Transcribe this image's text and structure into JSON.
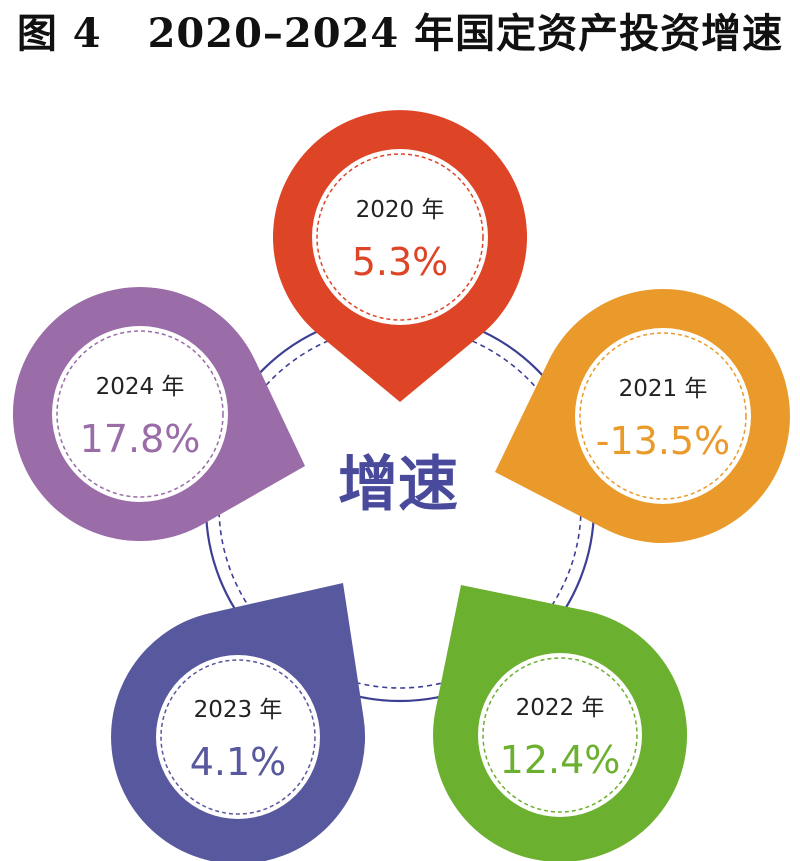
{
  "title": {
    "fig_label": "图 4",
    "text": "2020–2024 年国定资产投资增速"
  },
  "center_label": "增速",
  "colors": {
    "ring": "#3d3f94",
    "center_text": "#4a4a9c"
  },
  "chart_data": {
    "type": "pie",
    "title": "2020–2024 年国定资产投资增速",
    "categories": [
      "2020 年",
      "2021 年",
      "2022 年",
      "2023 年",
      "2024 年"
    ],
    "values": [
      5.3,
      -13.5,
      12.4,
      4.1,
      17.8
    ],
    "value_labels": [
      "5.3%",
      "-13.5%",
      "12.4%",
      "4.1%",
      "17.8%"
    ],
    "unit": "%",
    "colors": [
      "#de4527",
      "#ea9a2b",
      "#6cb030",
      "#58589e",
      "#9a6ca8"
    ]
  }
}
